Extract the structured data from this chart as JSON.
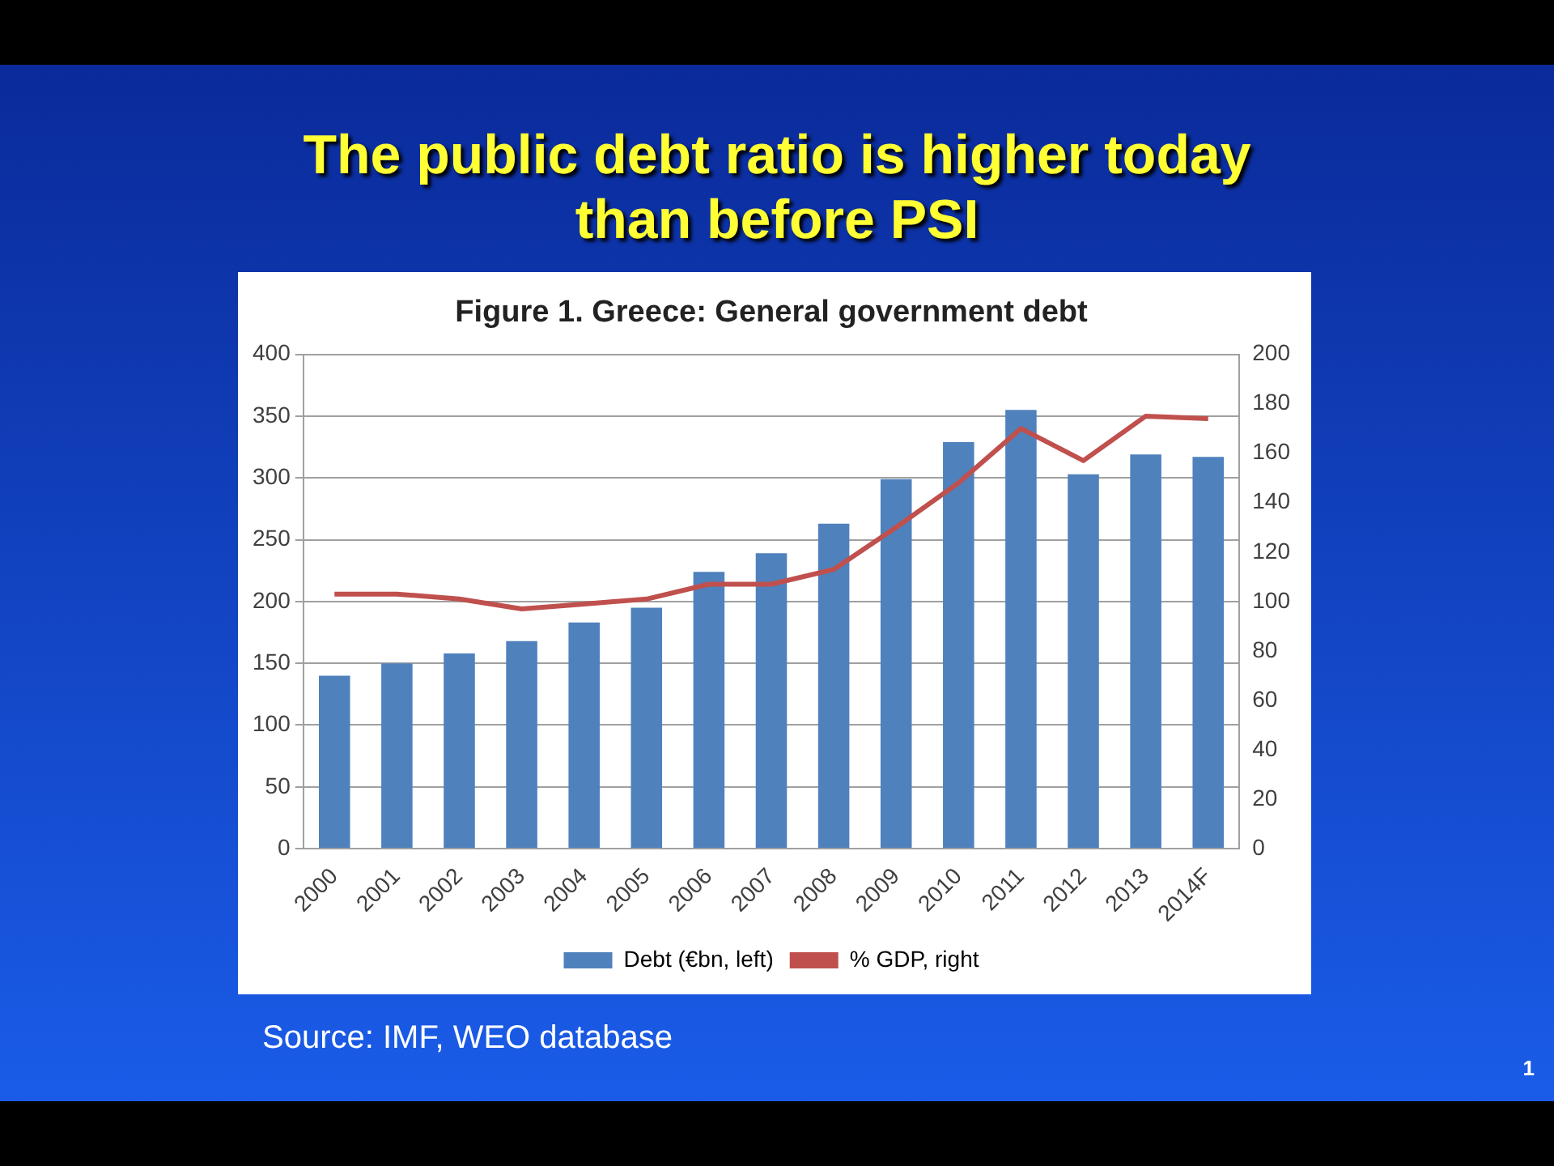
{
  "chart_data": {
    "type": "bar",
    "title": "The public debt ratio is higher today than before PSI",
    "subtitle": "Figure 1. Greece: General government debt",
    "categories": [
      "2000",
      "2001",
      "2002",
      "2003",
      "2004",
      "2005",
      "2006",
      "2007",
      "2008",
      "2009",
      "2010",
      "2011",
      "2012",
      "2013",
      "2014F"
    ],
    "series": [
      {
        "name": "Debt (€bn, left)",
        "color": "#4f81bd",
        "values": [
          140,
          150,
          158,
          168,
          183,
          195,
          224,
          239,
          263,
          299,
          329,
          355,
          303,
          319,
          317
        ]
      },
      {
        "name": "% GDP, right",
        "type": "line",
        "axis": "y2",
        "color": "#c0504d",
        "values": [
          103,
          103,
          101,
          97,
          99,
          101,
          107,
          107,
          113,
          130,
          148,
          170,
          157,
          175,
          174
        ]
      }
    ],
    "ylim": [
      0,
      400
    ],
    "yticks": [
      0,
      50,
      100,
      150,
      200,
      250,
      300,
      350,
      400
    ],
    "y2lim": [
      0,
      200
    ],
    "y2ticks": [
      0,
      20,
      40,
      60,
      80,
      100,
      120,
      140,
      160,
      180,
      200
    ],
    "grid": "y",
    "legend": "bottom",
    "marker": "none",
    "line_style": "solid",
    "annotations": [
      "Source: IMF, WEO database",
      "1"
    ]
  }
}
